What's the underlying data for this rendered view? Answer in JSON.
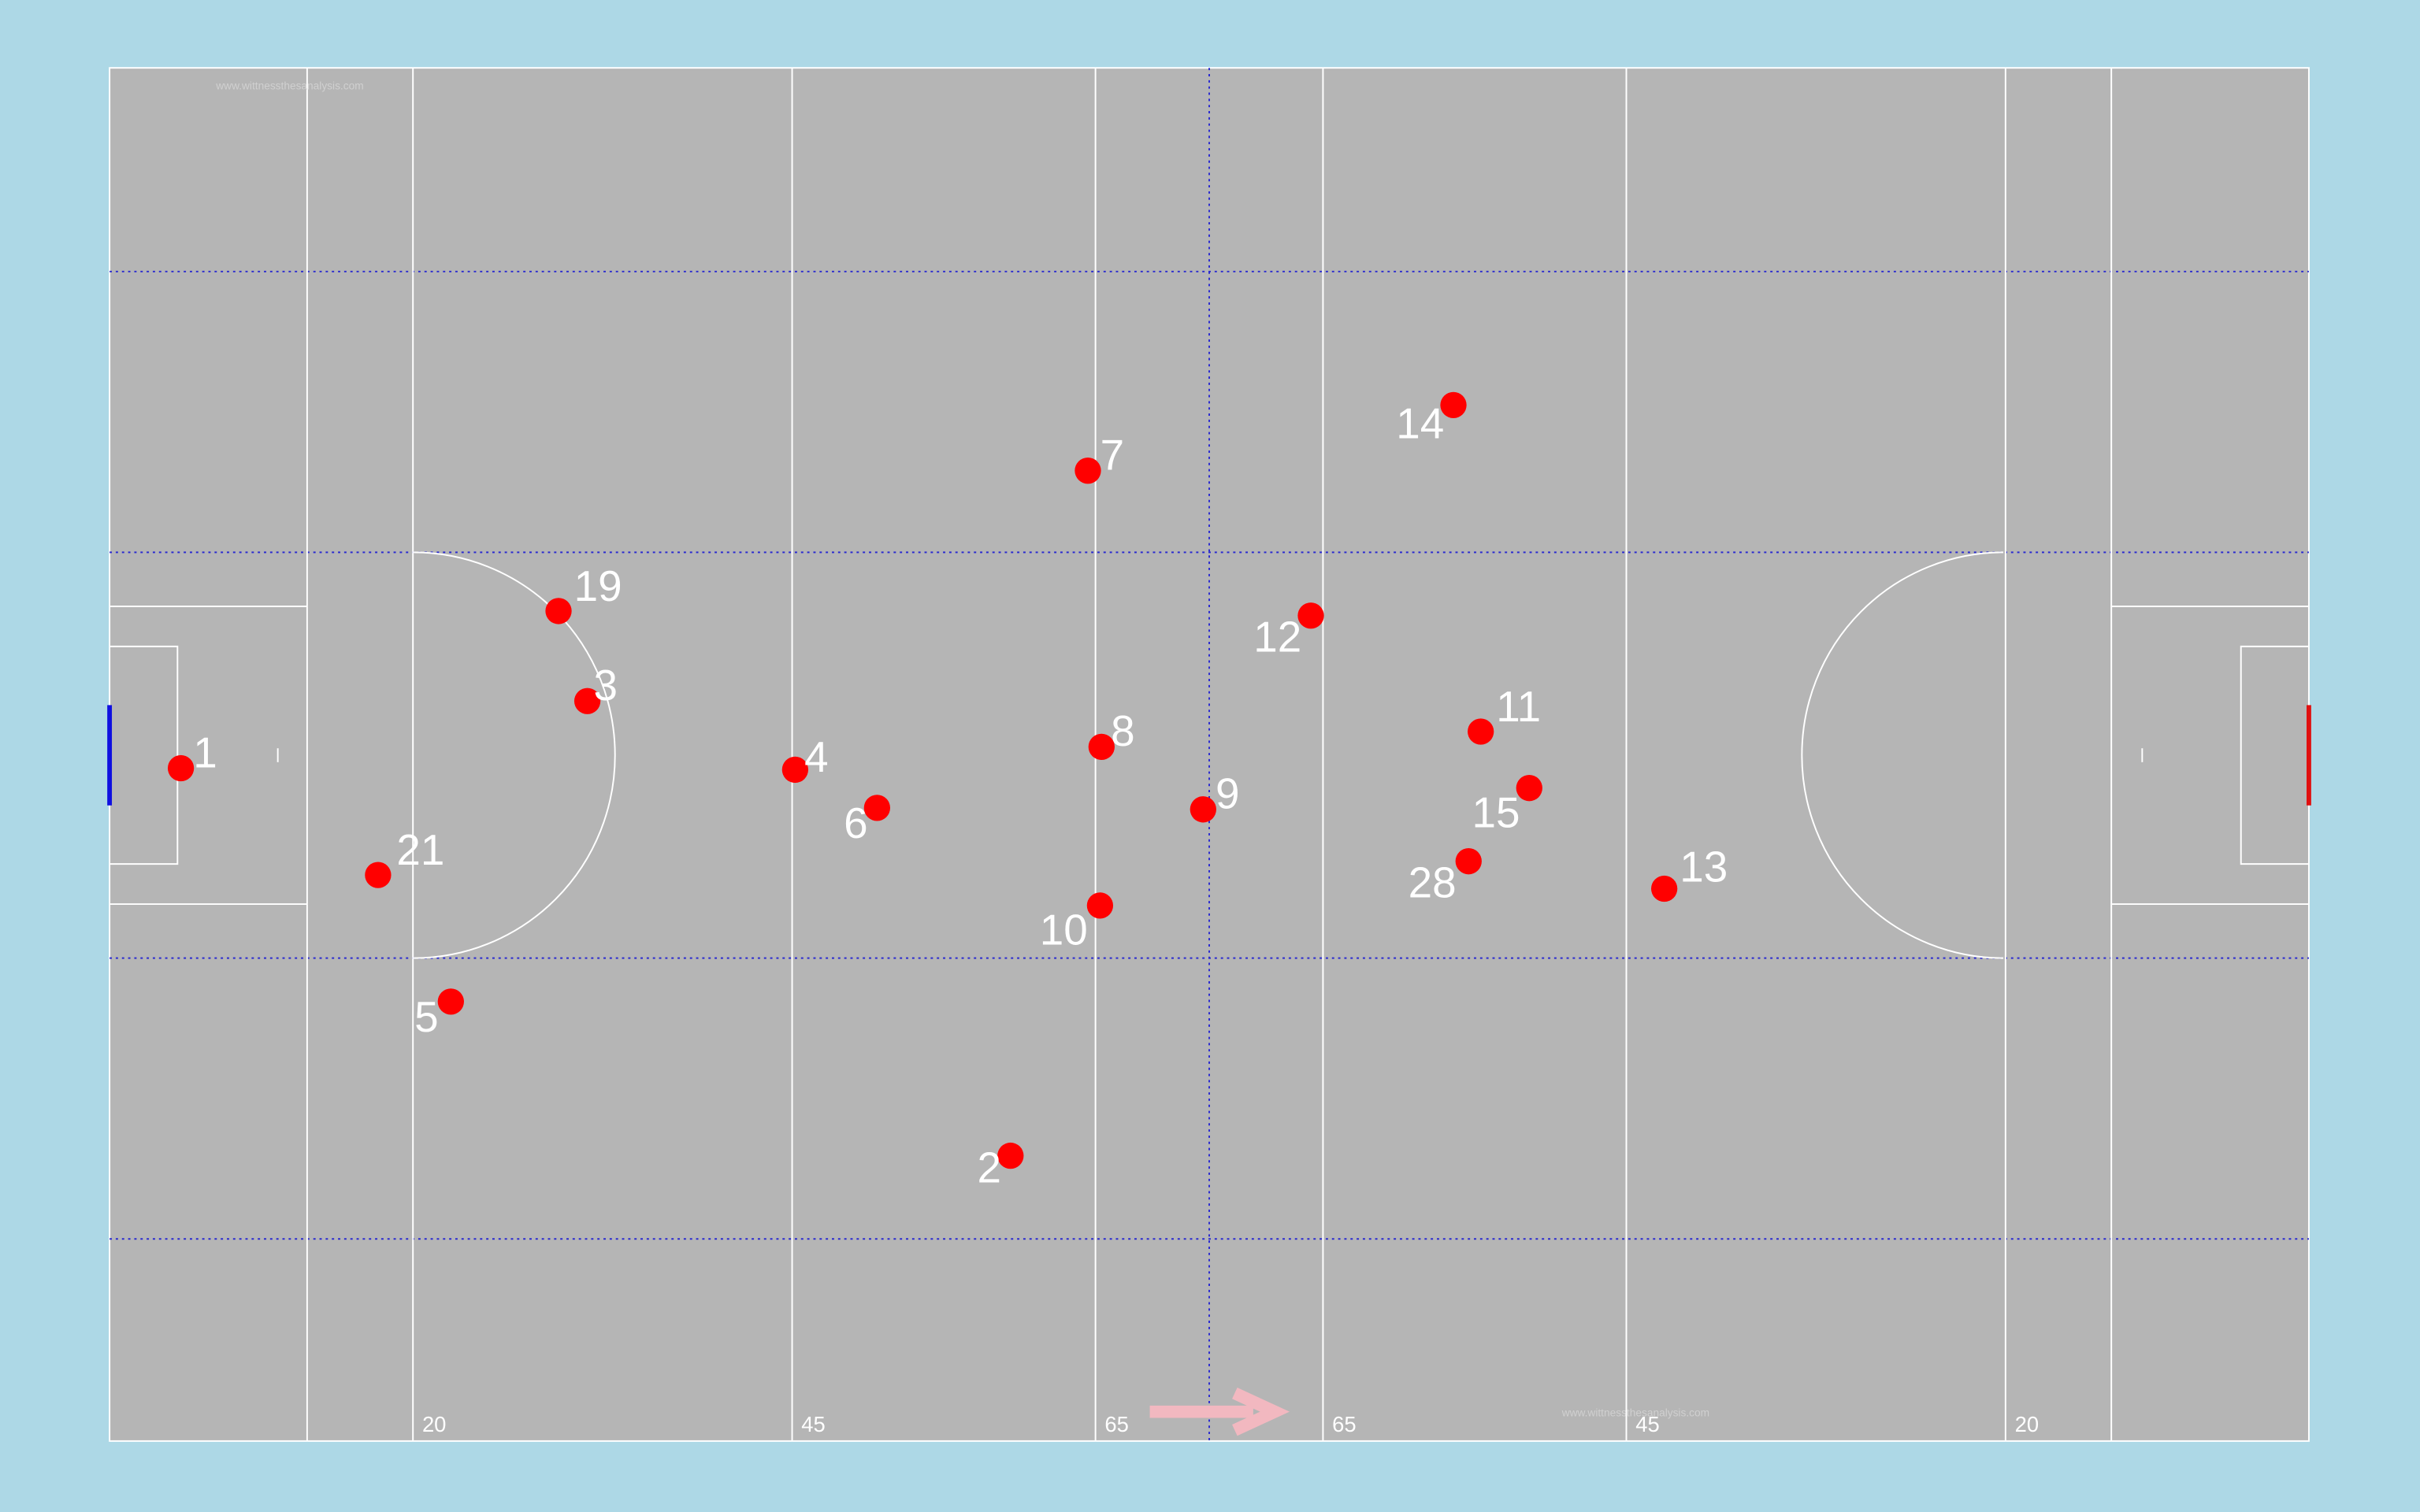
{
  "chart_data": {
    "type": "scatter",
    "watermark": "www.wittnessthesanalysis.com",
    "labels": [
      "1",
      "19",
      "3",
      "21",
      "5",
      "4",
      "6",
      "7",
      "8",
      "10",
      "2",
      "9",
      "12",
      "14",
      "11",
      "15",
      "28",
      "13"
    ],
    "x": [
      4.7,
      29.6,
      31.5,
      17.7,
      22.5,
      45.2,
      50.6,
      64.5,
      65.4,
      65.3,
      59.4,
      72.1,
      79.2,
      88.6,
      90.4,
      93.6,
      89.6,
      102.5
    ],
    "values": [
      45.9,
      35.6,
      41.5,
      52.9,
      61.2,
      46.0,
      48.5,
      26.4,
      44.5,
      54.9,
      71.3,
      48.6,
      35.9,
      22.1,
      43.5,
      47.2,
      52.0,
      53.8
    ],
    "color": "#ff0000",
    "xlim": [
      0,
      145
    ],
    "ylim": [
      0,
      90
    ],
    "xticks": [
      20,
      45,
      65,
      {
        "value": 80,
        "label": "65"
      },
      {
        "value": 100,
        "label": "45"
      },
      {
        "value": 125,
        "label": "20"
      }
    ]
  }
}
